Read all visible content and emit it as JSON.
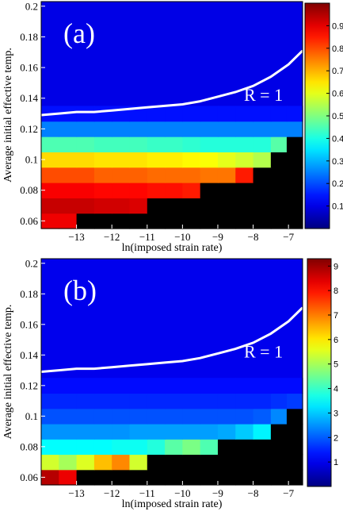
{
  "chart_data": [
    {
      "type": "heatmap",
      "panel_label": "(a)",
      "annotation": "R = 1",
      "xlabel": "ln(imposed strain rate)",
      "ylabel": "Average initial effective temp.",
      "xlim": [
        -14,
        -6.6
      ],
      "ylim": [
        0.055,
        0.203
      ],
      "x_ticks": [
        -13,
        -12,
        -11,
        -10,
        -9,
        -8,
        -7
      ],
      "x_tick_labels": [
        "−13",
        "−12",
        "−11",
        "−10",
        "−9",
        "−8",
        "−7"
      ],
      "y_ticks": [
        0.06,
        0.08,
        0.1,
        0.12,
        0.14,
        0.16,
        0.18,
        0.2
      ],
      "y_tick_labels": [
        "0.06",
        "0.08",
        "0.1",
        "0.12",
        "0.14",
        "0.16",
        "0.18",
        "0.2"
      ],
      "colorbar": {
        "min": 0,
        "max": 1,
        "ticks": [
          0.1,
          0.2,
          0.3,
          0.4,
          0.5,
          0.6,
          0.7,
          0.8,
          0.9
        ],
        "tick_labels": [
          "0.1",
          "0.2",
          "0.3",
          "0.4",
          "0.5",
          "0.6",
          "0.7",
          "0.8",
          "0.9"
        ]
      },
      "no_data_color": "#000000",
      "x_columns": [
        -13.75,
        -13.25,
        -12.75,
        -12.25,
        -11.75,
        -11.25,
        -10.75,
        -10.25,
        -9.75,
        -9.25,
        -8.75,
        -8.25,
        -7.75,
        -7.25,
        -6.85
      ],
      "y_rows": [
        0.06,
        0.07,
        0.08,
        0.09,
        0.1,
        0.11,
        0.12,
        0.13
      ],
      "values": [
        [
          0.89,
          0.89,
          null,
          null,
          null,
          null,
          null,
          null,
          null,
          null,
          null,
          null,
          null,
          null,
          null
        ],
        [
          0.93,
          0.93,
          0.93,
          0.92,
          0.92,
          0.91,
          null,
          null,
          null,
          null,
          null,
          null,
          null,
          null,
          null
        ],
        [
          0.88,
          0.88,
          0.88,
          0.87,
          0.87,
          0.87,
          0.86,
          0.86,
          0.85,
          null,
          null,
          null,
          null,
          null,
          null
        ],
        [
          0.8,
          0.8,
          0.8,
          0.78,
          0.78,
          0.78,
          0.77,
          0.77,
          0.77,
          0.76,
          0.76,
          0.85,
          null,
          null,
          null
        ],
        [
          0.66,
          0.66,
          0.66,
          0.65,
          0.65,
          0.65,
          0.64,
          0.64,
          0.63,
          0.62,
          0.6,
          0.58,
          0.55,
          null,
          null
        ],
        [
          0.45,
          0.45,
          0.45,
          0.44,
          0.44,
          0.44,
          0.43,
          0.43,
          0.42,
          0.41,
          0.41,
          0.41,
          0.41,
          0.46,
          null
        ],
        [
          0.25,
          0.25,
          0.25,
          0.25,
          0.25,
          0.25,
          0.25,
          0.25,
          0.25,
          0.25,
          0.25,
          0.25,
          0.25,
          0.25,
          0.25
        ],
        [
          0.14,
          0.14,
          0.14,
          0.14,
          0.14,
          0.14,
          0.14,
          0.14,
          0.14,
          0.14,
          0.14,
          0.14,
          0.14,
          0.14,
          0.14
        ]
      ],
      "background_value": 0.1,
      "curve": {
        "x": [
          -14,
          -13.5,
          -13,
          -12.5,
          -12,
          -11.5,
          -11,
          -10.5,
          -10,
          -9.5,
          -9,
          -8.5,
          -8,
          -7.5,
          -7,
          -6.6
        ],
        "y": [
          0.129,
          0.13,
          0.131,
          0.131,
          0.132,
          0.133,
          0.134,
          0.135,
          0.136,
          0.138,
          0.141,
          0.144,
          0.148,
          0.154,
          0.162,
          0.171
        ]
      }
    },
    {
      "type": "heatmap",
      "panel_label": "(b)",
      "annotation": "R = 1",
      "xlabel": "ln(imposed strain rate)",
      "ylabel": "Average initial effective temp.",
      "xlim": [
        -14,
        -6.6
      ],
      "ylim": [
        0.055,
        0.203
      ],
      "x_ticks": [
        -13,
        -12,
        -11,
        -10,
        -9,
        -8,
        -7
      ],
      "x_tick_labels": [
        "−13",
        "−12",
        "−11",
        "−10",
        "−9",
        "−8",
        "−7"
      ],
      "y_ticks": [
        0.06,
        0.08,
        0.1,
        0.12,
        0.14,
        0.16,
        0.18,
        0.2
      ],
      "y_tick_labels": [
        "0.06",
        "0.08",
        "0.1",
        "0.12",
        "0.14",
        "0.16",
        "0.18",
        "0.2"
      ],
      "colorbar": {
        "min": 0,
        "max": 9.3,
        "ticks": [
          1,
          2,
          3,
          4,
          5,
          6,
          7,
          8,
          9
        ],
        "tick_labels": [
          "1",
          "2",
          "3",
          "4",
          "5",
          "6",
          "7",
          "8",
          "9"
        ]
      },
      "no_data_color": "#000000",
      "x_columns": [
        -13.75,
        -13.25,
        -12.75,
        -12.25,
        -11.75,
        -11.25,
        -10.75,
        -10.25,
        -9.75,
        -9.25,
        -8.75,
        -8.25,
        -7.75,
        -7.25,
        -6.85
      ],
      "y_rows": [
        0.06,
        0.07,
        0.08,
        0.09,
        0.1,
        0.11,
        0.12
      ],
      "values": [
        [
          8.8,
          8.3,
          null,
          null,
          null,
          null,
          null,
          null,
          null,
          null,
          null,
          null,
          null,
          null,
          null
        ],
        [
          5.4,
          5.0,
          5.5,
          6.4,
          6.9,
          5.4,
          null,
          null,
          null,
          null,
          null,
          null,
          null,
          null,
          null
        ],
        [
          3.5,
          3.5,
          3.5,
          3.5,
          3.6,
          3.6,
          3.8,
          4.3,
          4.6,
          4.2,
          null,
          null,
          null,
          null,
          null
        ],
        [
          2.5,
          2.5,
          2.5,
          2.5,
          2.5,
          2.6,
          2.6,
          2.6,
          2.6,
          2.6,
          2.7,
          3.0,
          3.4,
          null,
          null
        ],
        [
          1.9,
          1.9,
          1.9,
          1.9,
          1.9,
          1.9,
          1.9,
          1.9,
          1.9,
          1.9,
          1.9,
          1.9,
          2.0,
          2.4,
          null
        ],
        [
          1.5,
          1.5,
          1.5,
          1.5,
          1.5,
          1.5,
          1.5,
          1.5,
          1.5,
          1.5,
          1.5,
          1.5,
          1.5,
          1.6,
          1.7
        ],
        [
          1.25,
          1.25,
          1.25,
          1.25,
          1.25,
          1.25,
          1.25,
          1.25,
          1.25,
          1.25,
          1.25,
          1.25,
          1.25,
          1.25,
          1.25
        ]
      ],
      "background_value": 1.0,
      "curve": {
        "x": [
          -14,
          -13.5,
          -13,
          -12.5,
          -12,
          -11.5,
          -11,
          -10.5,
          -10,
          -9.5,
          -9,
          -8.5,
          -8,
          -7.5,
          -7,
          -6.6
        ],
        "y": [
          0.129,
          0.13,
          0.131,
          0.131,
          0.132,
          0.133,
          0.134,
          0.135,
          0.136,
          0.138,
          0.141,
          0.144,
          0.148,
          0.154,
          0.162,
          0.171
        ]
      }
    }
  ]
}
